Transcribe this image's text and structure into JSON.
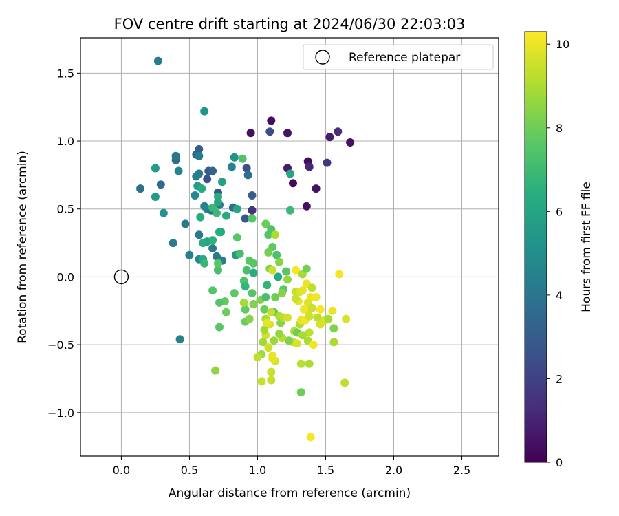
{
  "chart_data": {
    "type": "scatter",
    "title": "FOV centre drift starting at 2024/06/30 22:03:03",
    "xlabel": "Angular distance from reference (arcmin)",
    "ylabel": "Rotation from reference (arcmin)",
    "xlim": [
      -0.3,
      2.77
    ],
    "ylim": [
      -1.32,
      1.76
    ],
    "xticks": [
      0.0,
      0.5,
      1.0,
      1.5,
      2.0,
      2.5
    ],
    "xtick_labels": [
      "0.0",
      "0.5",
      "1.0",
      "1.5",
      "2.0",
      "2.5"
    ],
    "yticks": [
      -1.0,
      -0.5,
      0.0,
      0.5,
      1.0,
      1.5
    ],
    "ytick_labels": [
      "−1.0",
      "−0.5",
      "0.0",
      "0.5",
      "1.0",
      "1.5"
    ],
    "grid": true,
    "legend": {
      "position": "top-right",
      "entries": [
        "Reference platepar"
      ]
    },
    "reference_point": {
      "x": 0.0,
      "y": 0.0,
      "marker": "open-circle"
    },
    "colorbar": {
      "label": "Hours from first FF file",
      "colormap": "viridis",
      "range": [
        0,
        10.3
      ],
      "ticks": [
        0,
        2,
        4,
        6,
        8,
        10
      ],
      "tick_labels": [
        "0",
        "2",
        "4",
        "6",
        "8",
        "10"
      ]
    },
    "points": [
      [
        1.1,
        1.15,
        0.3
      ],
      [
        0.95,
        1.06,
        0.4
      ],
      [
        1.22,
        1.06,
        0.6
      ],
      [
        1.68,
        0.99,
        0.5
      ],
      [
        1.53,
        1.03,
        0.8
      ],
      [
        1.59,
        1.07,
        1.3
      ],
      [
        1.09,
        1.07,
        2.4
      ],
      [
        1.37,
        0.85,
        0.3
      ],
      [
        1.38,
        0.81,
        1.1
      ],
      [
        1.22,
        0.8,
        0.7
      ],
      [
        1.26,
        0.69,
        0.2
      ],
      [
        1.43,
        0.65,
        0.5
      ],
      [
        1.36,
        0.52,
        0.4
      ],
      [
        1.51,
        0.84,
        1.6
      ],
      [
        0.96,
        0.49,
        1.5
      ],
      [
        0.96,
        0.6,
        3.0
      ],
      [
        0.92,
        0.8,
        2.5
      ],
      [
        0.93,
        0.75,
        3.8
      ],
      [
        0.91,
        0.43,
        2.9
      ],
      [
        0.63,
        0.72,
        2.5
      ],
      [
        0.64,
        0.78,
        2.9
      ],
      [
        0.67,
        0.78,
        3.3
      ],
      [
        0.71,
        0.62,
        2.7
      ],
      [
        0.55,
        0.9,
        3.4
      ],
      [
        0.57,
        0.94,
        3.1
      ],
      [
        0.4,
        0.86,
        3.6
      ],
      [
        0.4,
        0.89,
        4.0
      ],
      [
        0.42,
        0.78,
        4.6
      ],
      [
        0.29,
        0.68,
        3.5
      ],
      [
        0.14,
        0.65,
        3.8
      ],
      [
        0.27,
        1.59,
        4.3
      ],
      [
        0.61,
        1.22,
        5.3
      ],
      [
        0.57,
        0.76,
        4.2
      ],
      [
        0.57,
        0.89,
        4.2
      ],
      [
        0.55,
        0.74,
        4.4
      ],
      [
        0.54,
        0.6,
        4.7
      ],
      [
        0.61,
        0.52,
        4.5
      ],
      [
        0.63,
        0.5,
        4.6
      ],
      [
        0.66,
        0.49,
        3.9
      ],
      [
        0.72,
        0.53,
        4.1
      ],
      [
        0.82,
        0.51,
        3.8
      ],
      [
        0.81,
        0.81,
        4.6
      ],
      [
        0.83,
        0.88,
        5.2
      ],
      [
        0.85,
        0.5,
        6.0
      ],
      [
        0.47,
        0.39,
        4.1
      ],
      [
        0.57,
        0.31,
        4.2
      ],
      [
        0.38,
        0.25,
        4.3
      ],
      [
        0.31,
        0.47,
        5.2
      ],
      [
        0.25,
        0.8,
        5.6
      ],
      [
        0.25,
        0.59,
        5.5
      ],
      [
        0.56,
        0.67,
        5.7
      ],
      [
        0.59,
        0.65,
        6.3
      ],
      [
        0.67,
        0.51,
        6.9
      ],
      [
        0.71,
        0.59,
        6.4
      ],
      [
        0.71,
        0.55,
        6.1
      ],
      [
        0.74,
        0.7,
        5.8
      ],
      [
        0.73,
        0.33,
        5.9
      ],
      [
        0.77,
        0.45,
        6.2
      ],
      [
        0.67,
        0.21,
        4.3
      ],
      [
        0.7,
        0.15,
        4.1
      ],
      [
        0.74,
        0.12,
        4.3
      ],
      [
        0.57,
        0.13,
        4.8
      ],
      [
        0.5,
        0.16,
        4.4
      ],
      [
        0.63,
        0.26,
        5.9
      ],
      [
        0.6,
        0.25,
        6.4
      ],
      [
        0.67,
        0.27,
        6.6
      ],
      [
        0.6,
        0.13,
        6.1
      ],
      [
        0.61,
        0.1,
        6.8
      ],
      [
        0.58,
        0.44,
        6.4
      ],
      [
        0.7,
        0.47,
        6.9
      ],
      [
        0.72,
        0.33,
        6.4
      ],
      [
        0.85,
        0.29,
        7.6
      ],
      [
        0.84,
        0.16,
        5.5
      ],
      [
        0.71,
        0.05,
        7.2
      ],
      [
        0.71,
        0.1,
        7.6
      ],
      [
        0.43,
        -0.46,
        4.5
      ],
      [
        0.89,
        0.87,
        7.4
      ],
      [
        0.96,
        0.43,
        7.5
      ],
      [
        1.24,
        0.49,
        6.9
      ],
      [
        1.24,
        0.76,
        6.0
      ],
      [
        0.87,
        0.17,
        7.2
      ],
      [
        0.92,
        0.05,
        7.2
      ],
      [
        0.94,
        0.12,
        7.6
      ],
      [
        0.97,
        0.1,
        7.6
      ],
      [
        0.97,
        0.03,
        6.4
      ],
      [
        0.9,
        -0.03,
        7.4
      ],
      [
        0.91,
        -0.07,
        6.7
      ],
      [
        0.96,
        -0.12,
        7.5
      ],
      [
        0.97,
        -0.2,
        8.3
      ],
      [
        0.91,
        -0.24,
        7.8
      ],
      [
        0.9,
        -0.19,
        8.9
      ],
      [
        0.91,
        -0.33,
        7.9
      ],
      [
        0.94,
        -0.31,
        8.4
      ],
      [
        0.83,
        -0.12,
        7.7
      ],
      [
        0.77,
        -0.26,
        7.9
      ],
      [
        0.76,
        -0.18,
        7.8
      ],
      [
        0.72,
        -0.19,
        7.5
      ],
      [
        0.67,
        -0.1,
        7.5
      ],
      [
        0.72,
        -0.37,
        7.6
      ],
      [
        0.69,
        -0.69,
        8.5
      ],
      [
        1.06,
        0.39,
        7.9
      ],
      [
        1.08,
        0.31,
        7.5
      ],
      [
        1.1,
        0.35,
        7.4
      ],
      [
        1.11,
        0.22,
        7.7
      ],
      [
        1.13,
        0.31,
        9.0
      ],
      [
        1.14,
        0.16,
        7.3
      ],
      [
        1.16,
        0.11,
        8.4
      ],
      [
        1.08,
        0.18,
        8.1
      ],
      [
        1.09,
        0.06,
        8.3
      ],
      [
        1.07,
        -0.06,
        6.7
      ],
      [
        1.11,
        0.05,
        9.5
      ],
      [
        1.21,
        0.04,
        7.6
      ],
      [
        1.22,
        -0.02,
        8.6
      ],
      [
        1.15,
        0.0,
        6.2
      ],
      [
        1.19,
        -0.09,
        7.7
      ],
      [
        1.18,
        -0.12,
        8.4
      ],
      [
        1.13,
        -0.15,
        8.0
      ],
      [
        1.12,
        -0.26,
        7.6
      ],
      [
        1.05,
        -0.24,
        7.9
      ],
      [
        1.02,
        -0.17,
        8.3
      ],
      [
        1.06,
        -0.15,
        7.2
      ],
      [
        1.06,
        -0.31,
        9.0
      ],
      [
        1.1,
        -0.26,
        9.4
      ],
      [
        1.16,
        -0.29,
        9.1
      ],
      [
        1.17,
        -0.34,
        8.4
      ],
      [
        1.19,
        -0.3,
        9.2
      ],
      [
        1.22,
        -0.3,
        9.6
      ],
      [
        1.27,
        -0.4,
        9.1
      ],
      [
        1.29,
        -0.41,
        8.0
      ],
      [
        1.31,
        -0.35,
        9.0
      ],
      [
        1.26,
        -0.48,
        9.5
      ],
      [
        1.23,
        -0.47,
        8.3
      ],
      [
        1.18,
        -0.45,
        9.2
      ],
      [
        1.16,
        -0.42,
        8.6
      ],
      [
        1.12,
        -0.47,
        8.7
      ],
      [
        1.09,
        -0.35,
        9.7
      ],
      [
        1.06,
        -0.43,
        9.6
      ],
      [
        1.04,
        -0.48,
        8.8
      ],
      [
        1.08,
        -0.52,
        9.5
      ],
      [
        1.03,
        -0.57,
        8.8
      ],
      [
        1.0,
        -0.59,
        9.3
      ],
      [
        1.03,
        -0.77,
        9.4
      ],
      [
        1.1,
        -0.76,
        9.4
      ],
      [
        1.11,
        -0.58,
        9.9
      ],
      [
        1.13,
        -0.62,
        9.7
      ],
      [
        1.1,
        -0.7,
        9.5
      ],
      [
        1.11,
        -0.6,
        9.9
      ],
      [
        1.05,
        -0.39,
        8.8
      ],
      [
        1.07,
        -0.34,
        9.9
      ],
      [
        1.28,
        0.05,
        10.2
      ],
      [
        1.33,
        0.02,
        8.9
      ],
      [
        1.36,
        0.06,
        8.1
      ],
      [
        1.28,
        -0.11,
        9.4
      ],
      [
        1.31,
        -0.11,
        9.7
      ],
      [
        1.33,
        -0.1,
        9.9
      ],
      [
        1.36,
        -0.05,
        10.0
      ],
      [
        1.4,
        -0.08,
        9.3
      ],
      [
        1.39,
        -0.15,
        10.0
      ],
      [
        1.3,
        -0.18,
        10.0
      ],
      [
        1.28,
        -0.16,
        9.5
      ],
      [
        1.43,
        -0.15,
        10.1
      ],
      [
        1.37,
        -0.19,
        9.8
      ],
      [
        1.37,
        -0.25,
        9.7
      ],
      [
        1.34,
        -0.24,
        10.1
      ],
      [
        1.4,
        -0.23,
        9.5
      ],
      [
        1.32,
        -0.32,
        10.0
      ],
      [
        1.35,
        -0.32,
        10.1
      ],
      [
        1.38,
        -0.29,
        9.6
      ],
      [
        1.44,
        -0.3,
        9.2
      ],
      [
        1.46,
        -0.24,
        10.2
      ],
      [
        1.49,
        -0.32,
        9.7
      ],
      [
        1.52,
        -0.31,
        8.9
      ],
      [
        1.55,
        -0.25,
        10.0
      ],
      [
        1.46,
        -0.35,
        9.7
      ],
      [
        1.56,
        -0.38,
        8.3
      ],
      [
        1.56,
        -0.48,
        9.0
      ],
      [
        1.38,
        -0.41,
        9.3
      ],
      [
        1.37,
        -0.47,
        9.0
      ],
      [
        1.33,
        -0.43,
        8.9
      ],
      [
        1.29,
        -0.49,
        9.7
      ],
      [
        1.32,
        -0.64,
        9.2
      ],
      [
        1.38,
        -0.64,
        9.0
      ],
      [
        1.41,
        -0.5,
        10.1
      ],
      [
        1.32,
        -0.85,
        8.0
      ],
      [
        1.39,
        -1.18,
        10.2
      ],
      [
        1.64,
        -0.78,
        9.3
      ],
      [
        1.65,
        -0.31,
        9.7
      ],
      [
        1.6,
        0.02,
        10.1
      ]
    ]
  }
}
